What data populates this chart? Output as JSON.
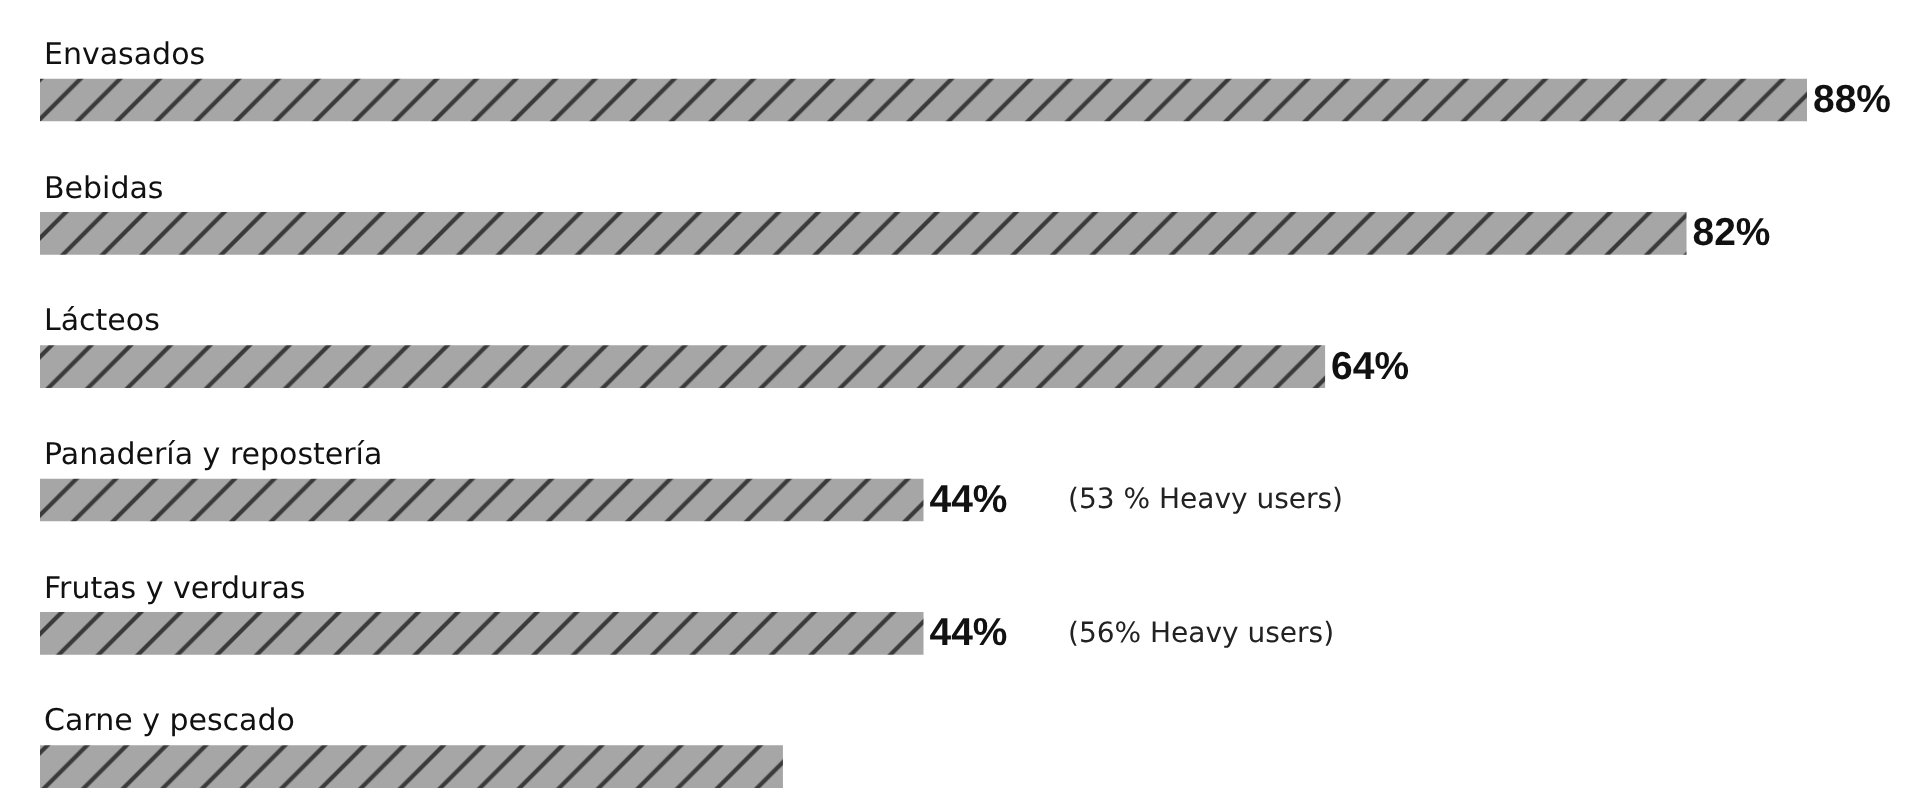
{
  "chart_data": {
    "type": "bar",
    "orientation": "horizontal",
    "categories": [
      "Envasados",
      "Bebidas",
      "Lácteos",
      "Panadería y repostería",
      "Frutas y verduras",
      "Carne y pescado"
    ],
    "values": [
      88,
      82,
      64,
      44,
      44,
      37
    ],
    "value_labels": [
      "88%",
      "82%",
      "64%",
      "44%",
      "44%",
      null
    ],
    "color": "#a6a6a6",
    "annotations": [
      "(53 % Heavy users)",
      "(56% Heavy users)"
    ]
  }
}
